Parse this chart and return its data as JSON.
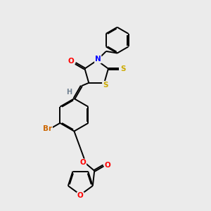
{
  "bg_color": "#ebebeb",
  "bond_color": "#000000",
  "atom_colors": {
    "O": "#ff0000",
    "N": "#0000ff",
    "S": "#ccaa00",
    "Br": "#cc6600",
    "H": "#708090",
    "C": "#000000"
  },
  "bond_lw": 1.4,
  "font_size": 7.5,
  "title": ""
}
